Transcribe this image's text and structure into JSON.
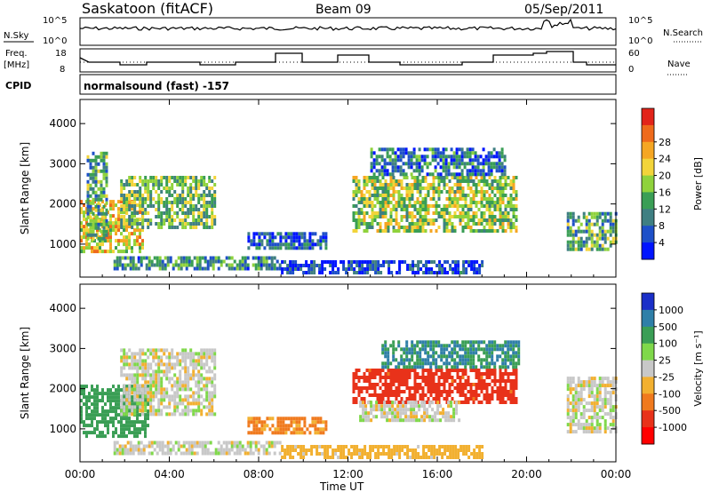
{
  "header": {
    "station": "Saskatoon (fitACF)",
    "beam": "Beam 09",
    "date": "05/Sep/2011"
  },
  "top_panel": {
    "nsky_label": "N.Sky",
    "nsky_ticks": [
      "10^5",
      "10^0"
    ],
    "nsearch_label": "N.Search",
    "nsearch_ticks": [
      "10^5",
      "10^0"
    ],
    "freq_label": "Freq.",
    "freq_unit": "[MHz]",
    "freq_ticks": [
      "18",
      "8"
    ],
    "nave_label": "Nave",
    "nave_ticks": [
      "60",
      "0"
    ],
    "cpid_label": "CPID",
    "cpid_value": "normalsound (fast) -157"
  },
  "chart_data": [
    {
      "type": "heatmap",
      "title": "",
      "xlabel": "Time UT",
      "ylabel": "Slant Range [km]",
      "x_ticks": [
        "00:00",
        "04:00",
        "08:00",
        "12:00",
        "16:00",
        "20:00",
        "00:00"
      ],
      "y_ticks": [
        "1000",
        "2000",
        "3000",
        "4000"
      ],
      "xlim_hours": [
        0,
        24
      ],
      "ylim_km": [
        180,
        4600
      ],
      "colorbar_label": "Power [dB]",
      "colorbar_ticks": [
        "4",
        "8",
        "12",
        "16",
        "20",
        "24",
        "28"
      ],
      "colorscale": [
        "#0014ff",
        "#1e50c8",
        "#3f7f82",
        "#3a9e55",
        "#8fd23c",
        "#f2d43a",
        "#f5a623",
        "#ee6a1b",
        "#e2241a"
      ],
      "echo_regions": [
        {
          "t0": 0.0,
          "t1": 2.8,
          "r0": 800,
          "r1": 2100,
          "value": 22
        },
        {
          "t0": 1.8,
          "t1": 6.0,
          "r0": 1400,
          "r1": 2700,
          "value": 16
        },
        {
          "t0": 0.3,
          "t1": 1.2,
          "r0": 1100,
          "r1": 3300,
          "value": 14
        },
        {
          "t0": 1.5,
          "t1": 9.0,
          "r0": 400,
          "r1": 700,
          "value": 12
        },
        {
          "t0": 7.5,
          "t1": 11.0,
          "r0": 900,
          "r1": 1300,
          "value": 8
        },
        {
          "t0": 12.2,
          "t1": 19.6,
          "r0": 1300,
          "r1": 2700,
          "value": 18
        },
        {
          "t0": 13.0,
          "t1": 19.0,
          "r0": 2700,
          "r1": 3400,
          "value": 10
        },
        {
          "t0": 21.8,
          "t1": 24.0,
          "r0": 900,
          "r1": 1800,
          "value": 14
        },
        {
          "t0": 9.0,
          "t1": 18.0,
          "r0": 250,
          "r1": 600,
          "value": 6
        }
      ]
    },
    {
      "type": "heatmap",
      "title": "",
      "xlabel": "Time UT",
      "ylabel": "Slant Range [km]",
      "x_ticks": [
        "00:00",
        "04:00",
        "08:00",
        "12:00",
        "16:00",
        "20:00",
        "00:00"
      ],
      "y_ticks": [
        "1000",
        "2000",
        "3000",
        "4000"
      ],
      "xlim_hours": [
        0,
        24
      ],
      "ylim_km": [
        180,
        4600
      ],
      "colorbar_label": "Velocity [m s⁻¹]",
      "colorbar_ticks": [
        "1000",
        "500",
        "100",
        "25",
        "-25",
        "-100",
        "-500",
        "-1000"
      ],
      "colorscale": [
        "#1a2fc8",
        "#2f7fa8",
        "#3a9e55",
        "#7fd84a",
        "#c8c8c8",
        "#f2b030",
        "#f07a1e",
        "#e8321a",
        "#ff0000"
      ],
      "echo_regions": [
        {
          "t0": 0.0,
          "t1": 3.0,
          "r0": 800,
          "r1": 2100,
          "value": 150
        },
        {
          "t0": 1.8,
          "t1": 6.0,
          "r0": 1400,
          "r1": 3000,
          "value": 0
        },
        {
          "t0": 1.5,
          "t1": 9.0,
          "r0": 400,
          "r1": 700,
          "value": 0
        },
        {
          "t0": 7.5,
          "t1": 11.0,
          "r0": 900,
          "r1": 1300,
          "value": -120
        },
        {
          "t0": 12.2,
          "t1": 19.6,
          "r0": 1700,
          "r1": 2500,
          "value": -700
        },
        {
          "t0": 13.5,
          "t1": 19.6,
          "r0": 2500,
          "r1": 3200,
          "value": 500
        },
        {
          "t0": 12.5,
          "t1": 17.0,
          "r0": 1200,
          "r1": 1700,
          "value": 0
        },
        {
          "t0": 21.8,
          "t1": 24.0,
          "r0": 900,
          "r1": 2300,
          "value": 0
        },
        {
          "t0": 9.0,
          "t1": 18.0,
          "r0": 250,
          "r1": 600,
          "value": -60
        }
      ]
    }
  ]
}
